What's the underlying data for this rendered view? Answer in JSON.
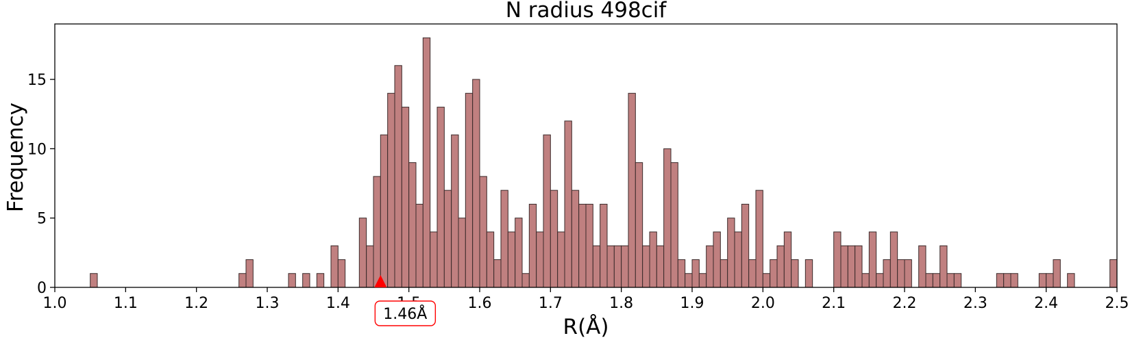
{
  "chart_data": {
    "type": "bar",
    "title": "N radius  498cif",
    "xlabel": "R(Å)",
    "ylabel": "Frequency",
    "xlim": [
      1.0,
      2.5
    ],
    "ylim": [
      0,
      19
    ],
    "bin_width": 0.01,
    "xticks": [
      "1.0",
      "1.1",
      "1.2",
      "1.3",
      "1.4",
      "1.5",
      "1.6",
      "1.7",
      "1.8",
      "1.9",
      "2.0",
      "2.1",
      "2.2",
      "2.3",
      "2.4",
      "2.5"
    ],
    "yticks": [
      "0",
      "5",
      "10",
      "15"
    ],
    "grid": false,
    "bar_color": "#c08080",
    "bar_edge_color": "#3a2a2a",
    "annotation": {
      "x": 1.46,
      "label": "1.46Å",
      "marker_color": "#ff0000",
      "box_edge_color": "#ff0000"
    },
    "bins": [
      {
        "x": 1.05,
        "count": 1
      },
      {
        "x": 1.26,
        "count": 1
      },
      {
        "x": 1.27,
        "count": 2
      },
      {
        "x": 1.33,
        "count": 1
      },
      {
        "x": 1.35,
        "count": 1
      },
      {
        "x": 1.37,
        "count": 1
      },
      {
        "x": 1.39,
        "count": 3
      },
      {
        "x": 1.4,
        "count": 2
      },
      {
        "x": 1.43,
        "count": 5
      },
      {
        "x": 1.44,
        "count": 3
      },
      {
        "x": 1.45,
        "count": 8
      },
      {
        "x": 1.46,
        "count": 11
      },
      {
        "x": 1.47,
        "count": 14
      },
      {
        "x": 1.48,
        "count": 16
      },
      {
        "x": 1.49,
        "count": 13
      },
      {
        "x": 1.5,
        "count": 9
      },
      {
        "x": 1.51,
        "count": 6
      },
      {
        "x": 1.52,
        "count": 18
      },
      {
        "x": 1.53,
        "count": 4
      },
      {
        "x": 1.54,
        "count": 13
      },
      {
        "x": 1.55,
        "count": 7
      },
      {
        "x": 1.56,
        "count": 11
      },
      {
        "x": 1.57,
        "count": 5
      },
      {
        "x": 1.58,
        "count": 14
      },
      {
        "x": 1.59,
        "count": 15
      },
      {
        "x": 1.6,
        "count": 8
      },
      {
        "x": 1.61,
        "count": 4
      },
      {
        "x": 1.62,
        "count": 2
      },
      {
        "x": 1.63,
        "count": 7
      },
      {
        "x": 1.64,
        "count": 4
      },
      {
        "x": 1.65,
        "count": 5
      },
      {
        "x": 1.66,
        "count": 1
      },
      {
        "x": 1.67,
        "count": 6
      },
      {
        "x": 1.68,
        "count": 4
      },
      {
        "x": 1.69,
        "count": 11
      },
      {
        "x": 1.7,
        "count": 7
      },
      {
        "x": 1.71,
        "count": 4
      },
      {
        "x": 1.72,
        "count": 12
      },
      {
        "x": 1.73,
        "count": 7
      },
      {
        "x": 1.74,
        "count": 6
      },
      {
        "x": 1.75,
        "count": 6
      },
      {
        "x": 1.76,
        "count": 3
      },
      {
        "x": 1.77,
        "count": 6
      },
      {
        "x": 1.78,
        "count": 3
      },
      {
        "x": 1.79,
        "count": 3
      },
      {
        "x": 1.8,
        "count": 3
      },
      {
        "x": 1.81,
        "count": 14
      },
      {
        "x": 1.82,
        "count": 9
      },
      {
        "x": 1.83,
        "count": 3
      },
      {
        "x": 1.84,
        "count": 4
      },
      {
        "x": 1.85,
        "count": 3
      },
      {
        "x": 1.86,
        "count": 10
      },
      {
        "x": 1.87,
        "count": 9
      },
      {
        "x": 1.88,
        "count": 2
      },
      {
        "x": 1.89,
        "count": 1
      },
      {
        "x": 1.9,
        "count": 2
      },
      {
        "x": 1.91,
        "count": 1
      },
      {
        "x": 1.92,
        "count": 3
      },
      {
        "x": 1.93,
        "count": 4
      },
      {
        "x": 1.94,
        "count": 2
      },
      {
        "x": 1.95,
        "count": 5
      },
      {
        "x": 1.96,
        "count": 4
      },
      {
        "x": 1.97,
        "count": 6
      },
      {
        "x": 1.98,
        "count": 2
      },
      {
        "x": 1.99,
        "count": 7
      },
      {
        "x": 2.0,
        "count": 1
      },
      {
        "x": 2.01,
        "count": 2
      },
      {
        "x": 2.02,
        "count": 3
      },
      {
        "x": 2.03,
        "count": 4
      },
      {
        "x": 2.04,
        "count": 2
      },
      {
        "x": 2.06,
        "count": 2
      },
      {
        "x": 2.1,
        "count": 4
      },
      {
        "x": 2.11,
        "count": 3
      },
      {
        "x": 2.12,
        "count": 3
      },
      {
        "x": 2.13,
        "count": 3
      },
      {
        "x": 2.14,
        "count": 1
      },
      {
        "x": 2.15,
        "count": 4
      },
      {
        "x": 2.16,
        "count": 1
      },
      {
        "x": 2.17,
        "count": 2
      },
      {
        "x": 2.18,
        "count": 4
      },
      {
        "x": 2.19,
        "count": 2
      },
      {
        "x": 2.2,
        "count": 2
      },
      {
        "x": 2.22,
        "count": 3
      },
      {
        "x": 2.23,
        "count": 1
      },
      {
        "x": 2.24,
        "count": 1
      },
      {
        "x": 2.25,
        "count": 3
      },
      {
        "x": 2.26,
        "count": 1
      },
      {
        "x": 2.27,
        "count": 1
      },
      {
        "x": 2.33,
        "count": 1
      },
      {
        "x": 2.34,
        "count": 1
      },
      {
        "x": 2.35,
        "count": 1
      },
      {
        "x": 2.39,
        "count": 1
      },
      {
        "x": 2.4,
        "count": 1
      },
      {
        "x": 2.41,
        "count": 2
      },
      {
        "x": 2.43,
        "count": 1
      },
      {
        "x": 2.49,
        "count": 2
      }
    ]
  }
}
